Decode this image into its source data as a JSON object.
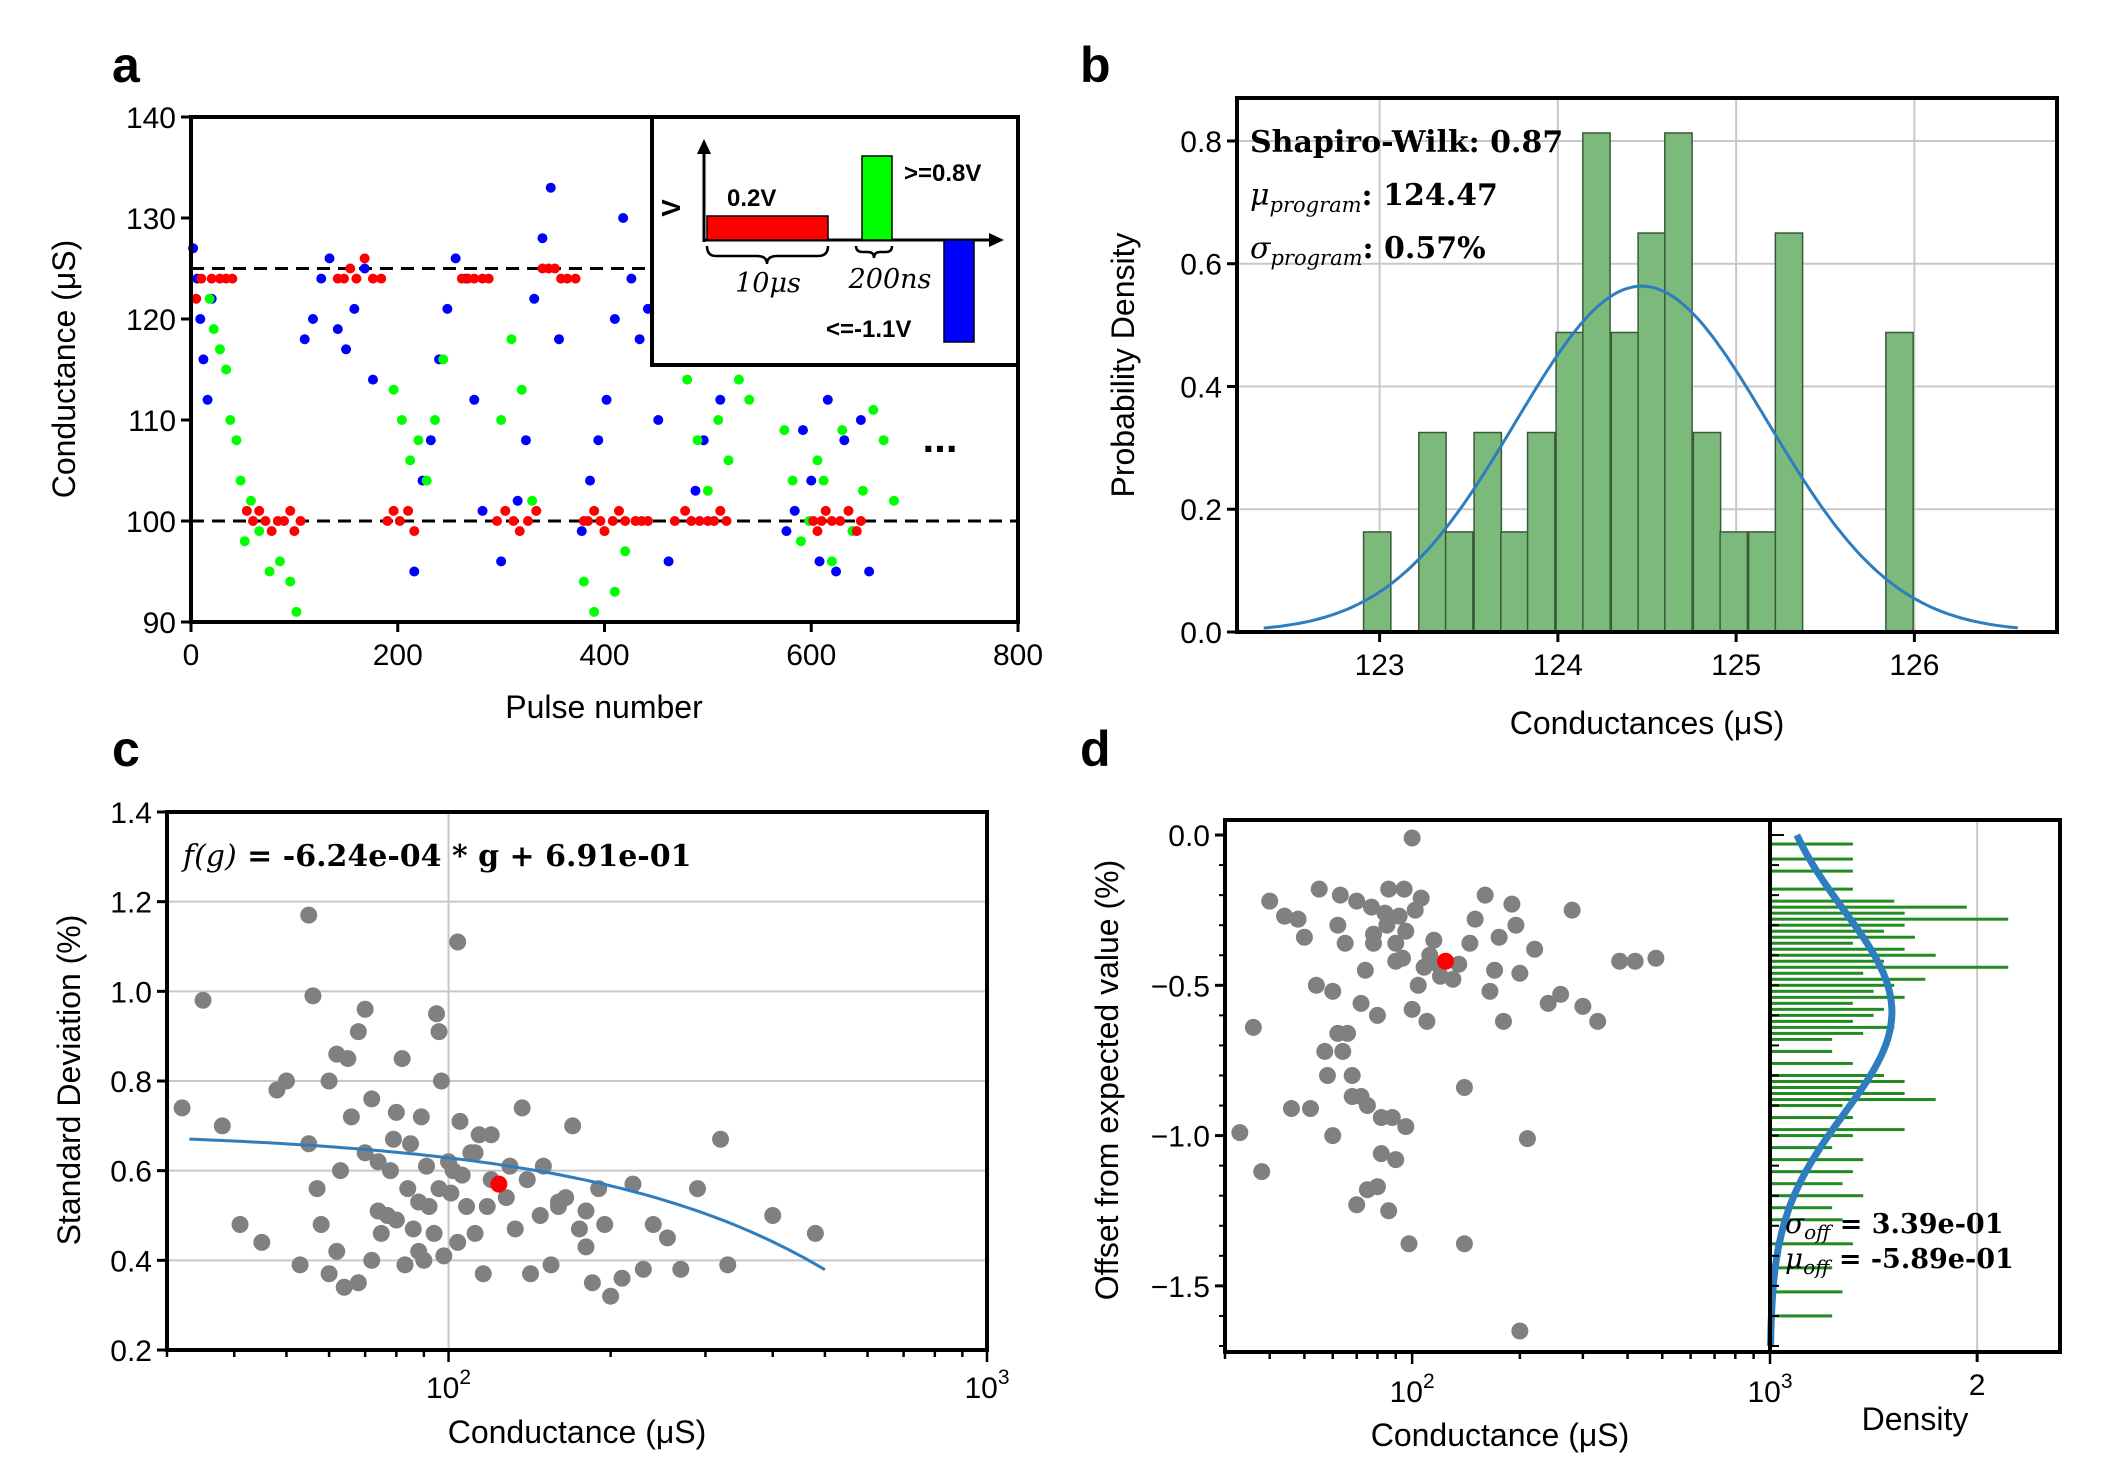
{
  "panels": {
    "a": "a",
    "b": "b",
    "c": "c",
    "d": "d"
  },
  "chart_data": [
    {
      "type": "scatter",
      "panel": "a",
      "xlabel": "Pulse number",
      "ylabel": "Conductance (μS)",
      "xlim": [
        0,
        800
      ],
      "ylim": [
        90,
        140
      ],
      "xticks": [
        0,
        200,
        400,
        600,
        800
      ],
      "yticks": [
        90,
        100,
        110,
        120,
        130,
        140
      ],
      "ref_lines": [
        100,
        125
      ],
      "ellipsis": "...",
      "colors": {
        "blue": "#0000ff",
        "green": "#00ff00",
        "red": "#ff0000"
      },
      "series": [
        {
          "name": "blue",
          "x": [
            2,
            6,
            9,
            12,
            16,
            20,
            110,
            118,
            126,
            134,
            142,
            150,
            158,
            168,
            176,
            216,
            224,
            232,
            240,
            248,
            256,
            266,
            274,
            282,
            300,
            316,
            324,
            332,
            340,
            348,
            356,
            378,
            386,
            394,
            402,
            410,
            418,
            426,
            434,
            442,
            452,
            462,
            488,
            496,
            504,
            512,
            520,
            528,
            576,
            584,
            592,
            600,
            608,
            616,
            624,
            632,
            640,
            648,
            656
          ],
          "y": [
            127,
            124,
            120,
            116,
            112,
            122,
            118,
            120,
            124,
            126,
            119,
            117,
            121,
            125,
            114,
            95,
            104,
            108,
            116,
            121,
            126,
            124,
            112,
            101,
            96,
            102,
            108,
            122,
            128,
            133,
            118,
            99,
            104,
            108,
            112,
            120,
            130,
            124,
            118,
            121,
            110,
            96,
            103,
            108,
            116,
            112,
            118,
            121,
            99,
            101,
            109,
            104,
            96,
            112,
            95,
            108,
            99,
            110,
            95
          ]
        },
        {
          "name": "green",
          "x": [
            18,
            22,
            28,
            34,
            38,
            44,
            48,
            52,
            58,
            66,
            76,
            86,
            96,
            102,
            196,
            204,
            212,
            220,
            228,
            236,
            244,
            300,
            310,
            320,
            330,
            380,
            390,
            400,
            410,
            420,
            480,
            490,
            500,
            510,
            520,
            530,
            540,
            574,
            582,
            590,
            598,
            606,
            612,
            620,
            630,
            640,
            650,
            660,
            670,
            680
          ],
          "y": [
            122,
            119,
            117,
            115,
            110,
            108,
            104,
            98,
            102,
            99,
            95,
            96,
            94,
            91,
            113,
            110,
            106,
            108,
            104,
            110,
            116,
            110,
            118,
            113,
            102,
            94,
            91,
            99,
            93,
            97,
            114,
            108,
            103,
            110,
            106,
            114,
            112,
            109,
            104,
            98,
            100,
            106,
            104,
            96,
            109,
            99,
            103,
            111,
            108,
            102
          ],
          "note": "approximate"
        },
        {
          "name": "red",
          "x": [
            5,
            10,
            20,
            28,
            34,
            40,
            54,
            60,
            66,
            72,
            78,
            84,
            90,
            96,
            100,
            106,
            142,
            148,
            154,
            160,
            168,
            176,
            184,
            190,
            196,
            202,
            210,
            216,
            262,
            268,
            274,
            282,
            288,
            296,
            304,
            312,
            318,
            326,
            334,
            340,
            346,
            352,
            358,
            364,
            372,
            380,
            384,
            390,
            396,
            400,
            408,
            414,
            420,
            430,
            436,
            442,
            468,
            478,
            484,
            492,
            500,
            506,
            512,
            518,
            602,
            606,
            610,
            614,
            620,
            628,
            636,
            644,
            648
          ],
          "y": [
            122,
            124,
            124,
            124,
            124,
            124,
            101,
            100,
            101,
            100,
            99,
            100,
            100,
            101,
            99,
            100,
            124,
            124,
            125,
            124,
            126,
            124,
            124,
            100,
            101,
            100,
            101,
            99,
            124,
            124,
            124,
            124,
            124,
            100,
            101,
            100,
            99,
            100,
            101,
            125,
            125,
            125,
            124,
            124,
            124,
            100,
            100,
            101,
            100,
            99,
            100,
            101,
            100,
            100,
            100,
            100,
            100,
            101,
            100,
            100,
            100,
            100,
            101,
            100,
            100,
            99,
            100,
            101,
            100,
            100,
            101,
            99,
            100
          ],
          "note": "approximate"
        }
      ],
      "inset": {
        "v_axis_label": "V",
        "pulse_set": {
          "label": "0.2V",
          "color": "#ff0000"
        },
        "pulse_read": {
          "label": ">=0.8V",
          "color": "#00ff00"
        },
        "pulse_reset": {
          "label": "<=-1.1V",
          "color": "#0000ff"
        },
        "t_width_label": "10μs",
        "t_gap_label": "200ns"
      }
    },
    {
      "type": "bar",
      "panel": "b",
      "xlabel": "Conductances (μS)",
      "ylabel": "Probability Density",
      "xlim": [
        122.2,
        126.8
      ],
      "ylim": [
        0,
        0.87
      ],
      "xticks": [
        123,
        124,
        125,
        126
      ],
      "yticks": [
        0.0,
        0.2,
        0.4,
        0.6,
        0.8
      ],
      "grid": true,
      "bar_color": "#7cba7c",
      "bin_width": 0.153,
      "bin_left": [
        122.91,
        123.22,
        123.37,
        123.53,
        123.68,
        123.83,
        123.99,
        124.14,
        124.3,
        124.45,
        124.6,
        124.76,
        124.91,
        125.07,
        125.22,
        125.84
      ],
      "values": [
        0.163,
        0.325,
        0.163,
        0.325,
        0.163,
        0.325,
        0.488,
        0.813,
        0.488,
        0.65,
        0.813,
        0.325,
        0.163,
        0.163,
        0.65,
        0.488
      ],
      "fit": {
        "type": "normal",
        "mu": 124.47,
        "sigma": 0.708,
        "x_range": [
          122.35,
          126.58
        ]
      },
      "annotations": {
        "shapiro": "Shapiro-Wilk: 0.87",
        "mu_symbol": "μ",
        "mu_sub": "program",
        "mu_value": ": 124.47",
        "sigma_symbol": "σ",
        "sigma_sub": "program",
        "sigma_value": ": 0.57%"
      }
    },
    {
      "type": "scatter",
      "panel": "c",
      "xlabel": "Conductance (μS)",
      "ylabel": "Standard Deviation (%)",
      "xscale": "log",
      "xlim": [
        30,
        1000
      ],
      "ylim": [
        0.2,
        1.4
      ],
      "yticks": [
        0.2,
        0.4,
        0.6,
        0.8,
        1.0,
        1.2,
        1.4
      ],
      "xtick_base": "10",
      "xtick_exps": [
        "2",
        "3"
      ],
      "grid": true,
      "equation_prefix": "f(g)",
      "equation_body": " = -6.24e-04 * g + 6.91e-01",
      "fit": {
        "slope": -0.000624,
        "intercept": 0.691,
        "x_range": [
          33,
          500
        ]
      },
      "highlight": {
        "x": 124,
        "y": 0.57,
        "color": "#ff0000"
      },
      "points": {
        "x": [
          32,
          35,
          38,
          41,
          45,
          48,
          50,
          53,
          55,
          55,
          57,
          58,
          60,
          60,
          62,
          63,
          64,
          65,
          66,
          68,
          70,
          70,
          72,
          72,
          74,
          75,
          77,
          78,
          79,
          80,
          82,
          83,
          84,
          85,
          86,
          88,
          89,
          90,
          91,
          92,
          94,
          95,
          96,
          97,
          98,
          100,
          101,
          102,
          104,
          105,
          106,
          108,
          110,
          112,
          114,
          116,
          118,
          120,
          128,
          130,
          133,
          137,
          142,
          148,
          150,
          155,
          160,
          165,
          170,
          175,
          180,
          185,
          190,
          195,
          200,
          210,
          220,
          230,
          240,
          255,
          270,
          290,
          320,
          330,
          400,
          480,
          56,
          62,
          68,
          74,
          80,
          88,
          96,
          104,
          112,
          120,
          140,
          160,
          180
        ],
        "y": [
          0.74,
          0.98,
          0.7,
          0.48,
          0.44,
          0.78,
          0.8,
          0.39,
          1.17,
          0.66,
          0.56,
          0.48,
          0.8,
          0.37,
          0.42,
          0.6,
          0.34,
          0.85,
          0.72,
          0.35,
          0.96,
          0.64,
          0.4,
          0.76,
          0.62,
          0.46,
          0.5,
          0.6,
          0.67,
          0.49,
          0.85,
          0.39,
          0.56,
          0.66,
          0.47,
          0.42,
          0.72,
          0.4,
          0.61,
          0.52,
          0.46,
          0.95,
          0.56,
          0.8,
          0.41,
          0.62,
          0.55,
          0.6,
          1.11,
          0.71,
          0.59,
          0.52,
          0.64,
          0.46,
          0.68,
          0.37,
          0.52,
          0.58,
          0.54,
          0.61,
          0.47,
          0.74,
          0.37,
          0.5,
          0.61,
          0.39,
          0.53,
          0.54,
          0.7,
          0.47,
          0.51,
          0.35,
          0.56,
          0.48,
          0.32,
          0.36,
          0.57,
          0.38,
          0.48,
          0.45,
          0.38,
          0.56,
          0.67,
          0.39,
          0.5,
          0.46,
          0.99,
          0.86,
          0.91,
          0.51,
          0.73,
          0.53,
          0.91,
          0.44,
          0.64,
          0.68,
          0.58,
          0.52,
          0.43
        ],
        "color": "#808080",
        "note": "approximate"
      }
    },
    {
      "type": "scatter",
      "panel": "d",
      "xlabel": "Conductance (μS)",
      "ylabel": "Offset from expected value (%)",
      "xscale": "log",
      "xlim": [
        30,
        1000
      ],
      "ylim": [
        -1.72,
        0.05
      ],
      "yticks": [
        0.0,
        -0.5,
        -1.0,
        -1.5
      ],
      "ytick_labels": [
        "0.0",
        "−0.5",
        "−1.0",
        "−1.5"
      ],
      "xtick_base": "10",
      "xtick_exps": [
        "2",
        "3"
      ],
      "highlight": {
        "x": 124,
        "y": -0.42,
        "color": "#ff0000"
      },
      "points": {
        "x": [
          33,
          36,
          38,
          40,
          44,
          46,
          48,
          50,
          52,
          54,
          55,
          57,
          58,
          60,
          60,
          62,
          63,
          65,
          66,
          68,
          70,
          72,
          74,
          75,
          77,
          78,
          80,
          82,
          84,
          85,
          86,
          88,
          90,
          92,
          94,
          95,
          96,
          98,
          100,
          102,
          104,
          106,
          108,
          110,
          112,
          115,
          118,
          120,
          130,
          135,
          140,
          145,
          150,
          160,
          165,
          170,
          175,
          180,
          190,
          195,
          200,
          210,
          220,
          240,
          260,
          280,
          300,
          330,
          380,
          420,
          480,
          62,
          64,
          68,
          72,
          75,
          78,
          82,
          86,
          90,
          96,
          100,
          140,
          200,
          70,
          80,
          90
        ],
        "y": [
          -0.99,
          -0.64,
          -1.12,
          -0.22,
          -0.27,
          -0.91,
          -0.28,
          -0.34,
          -0.91,
          -0.5,
          -0.18,
          -0.72,
          -0.8,
          -0.52,
          -1.0,
          -0.3,
          -0.2,
          -0.36,
          -0.66,
          -0.87,
          -0.22,
          -0.56,
          -0.45,
          -1.18,
          -0.24,
          -0.33,
          -0.6,
          -0.94,
          -0.26,
          -0.3,
          -0.18,
          -0.94,
          -0.36,
          -0.27,
          -0.41,
          -0.18,
          -0.32,
          -1.36,
          -0.01,
          -0.25,
          -0.5,
          -0.21,
          -0.44,
          -0.62,
          -0.4,
          -0.35,
          -0.43,
          -0.47,
          -0.48,
          -0.43,
          -0.84,
          -0.36,
          -0.28,
          -0.2,
          -0.52,
          -0.45,
          -0.34,
          -0.62,
          -0.23,
          -0.3,
          -0.46,
          -1.01,
          -0.38,
          -0.56,
          -0.53,
          -0.25,
          -0.57,
          -0.62,
          -0.42,
          -0.42,
          -0.41,
          -0.66,
          -0.72,
          -0.8,
          -0.87,
          -0.9,
          -0.36,
          -1.06,
          -1.25,
          -0.42,
          -0.97,
          -0.58,
          -1.36,
          -1.65,
          -1.23,
          -1.17,
          -1.08
        ],
        "color": "#808080",
        "note": "approximate"
      },
      "side": {
        "xlabel": "Density",
        "xlim": [
          0,
          2.8
        ],
        "xtick_label": "2",
        "bar_color": "#228b22",
        "fit_color": "#2e7ebf",
        "sigma_symbol": "σ",
        "sigma_sub": "off",
        "sigma_value": " = 3.39e-01",
        "mu_symbol": "μ",
        "mu_sub": "off",
        "mu_value": " = -5.89e-01",
        "mu": -0.589,
        "sigma": 0.339,
        "bars_y": [
          -0.03,
          -0.08,
          -0.12,
          -0.18,
          -0.22,
          -0.24,
          -0.26,
          -0.28,
          -0.3,
          -0.32,
          -0.34,
          -0.36,
          -0.38,
          -0.4,
          -0.42,
          -0.44,
          -0.46,
          -0.48,
          -0.5,
          -0.52,
          -0.54,
          -0.56,
          -0.58,
          -0.6,
          -0.62,
          -0.64,
          -0.66,
          -0.68,
          -0.72,
          -0.76,
          -0.8,
          -0.82,
          -0.84,
          -0.86,
          -0.88,
          -0.9,
          -0.94,
          -0.98,
          -1.0,
          -1.04,
          -1.08,
          -1.12,
          -1.16,
          -1.2,
          -1.24,
          -1.28,
          -1.36,
          -1.44,
          -1.52,
          -1.6
        ],
        "bars_w": [
          0.8,
          0.8,
          0.8,
          0.8,
          1.2,
          1.9,
          1.3,
          2.3,
          1.3,
          1.1,
          1.4,
          0.8,
          1.3,
          1.6,
          1.1,
          2.3,
          0.9,
          1.5,
          1.2,
          1.0,
          1.3,
          0.8,
          1.1,
          1.0,
          0.8,
          1.2,
          0.9,
          0.6,
          0.6,
          0.8,
          1.1,
          1.3,
          0.9,
          1.3,
          1.6,
          0.7,
          0.8,
          1.3,
          0.8,
          0.6,
          0.9,
          0.8,
          0.7,
          0.9,
          0.6,
          0.7,
          0.8,
          0.6,
          0.7,
          0.6
        ],
        "note": "approximate"
      }
    }
  ]
}
